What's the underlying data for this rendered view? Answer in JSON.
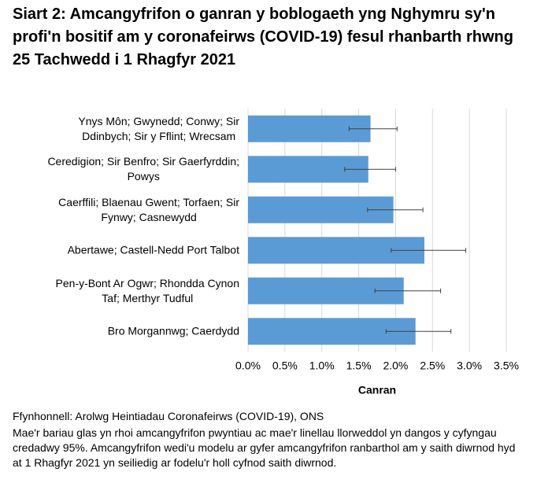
{
  "chart_data": {
    "type": "bar",
    "orientation": "horizontal",
    "title": "Siart 2: Amcangyfrifon o ganran y boblogaeth yng Nghymru sy'n profi'n bositif am y coronafeirws (COVID-19) fesul rhanbarth rhwng 25 Tachwedd i 1 Rhagfyr 2021",
    "categories": [
      "Ynys Môn; Gwynedd; Conwy; Sir\nDdinbych; Sir y Fflint; Wrecsam",
      "Ceredigion; Sir Benfro; Sir Gaerfyrddin;\nPowys",
      "Caerffili; Blaenau Gwent; Torfaen; Sir\nFynwy; Casnewydd",
      "Abertawe; Castell-Nedd Port Talbot",
      "Pen-y-Bont Ar Ogwr; Rhondda Cynon\nTaf; Merthyr Tudful",
      "Bro Morgannwg; Caerdydd"
    ],
    "values": [
      1.66,
      1.63,
      1.97,
      2.39,
      2.11,
      2.27
    ],
    "ci_lower": [
      1.37,
      1.31,
      1.62,
      1.94,
      1.72,
      1.87
    ],
    "ci_upper": [
      2.02,
      2.0,
      2.37,
      2.95,
      2.61,
      2.75
    ],
    "color": "#5b9bd5",
    "xlim": [
      0,
      3.5
    ],
    "xticks": [
      {
        "value": 0,
        "label": "0.0%"
      },
      {
        "value": 0.5,
        "label": "0.5%"
      },
      {
        "value": 1,
        "label": "1.0%"
      },
      {
        "value": 1.5,
        "label": "1.5%"
      },
      {
        "value": 2,
        "label": "2.0%"
      },
      {
        "value": 2.5,
        "label": "2.5%"
      },
      {
        "value": 3,
        "label": "3.0%"
      },
      {
        "value": 3.5,
        "label": "3.5%"
      }
    ],
    "xlabel": "Canran",
    "grid": true,
    "source": "Ffynhonnell: Arolwg Heintiadau Coronafeirws (COVID-19), ONS",
    "note": "Mae'r bariau glas yn rhoi amcangyfrifon pwyntiau ac mae'r linellau llorweddol yn dangos y cyfyngau credadwy 95%. Amcangyfrifon wedi'u modelu ar gyfer amcangyfrifon ranbarthol am y saith diwrnod hyd at 1 Rhagfyr 2021 yn seiliedig ar fodelu'r holl cyfnod saith diwrnod."
  }
}
